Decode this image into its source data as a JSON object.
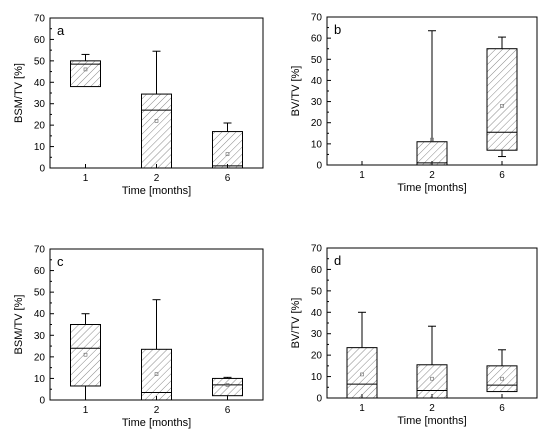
{
  "chart_data": [
    {
      "type": "box",
      "panel_label": "a",
      "xlabel": "Time [months]",
      "ylabel": "BSM/TV [%]",
      "ylim": [
        0,
        70
      ],
      "yticks": [
        0,
        10,
        20,
        30,
        40,
        50,
        60,
        70
      ],
      "categories": [
        "1",
        "2",
        "6"
      ],
      "boxes": [
        {
          "category": "1",
          "q1": 38,
          "median": 48.5,
          "q3": 50,
          "whisker_low": 38,
          "whisker_high": 53,
          "mean": 46
        },
        {
          "category": "2",
          "q1": 0,
          "median": 27,
          "q3": 34.5,
          "whisker_low": 0,
          "whisker_high": 54.5,
          "mean": 22
        },
        {
          "category": "6",
          "q1": 0,
          "median": 1,
          "q3": 17,
          "whisker_low": 0,
          "whisker_high": 21,
          "mean": 6.5
        }
      ]
    },
    {
      "type": "box",
      "panel_label": "b",
      "xlabel": "Time [months]",
      "ylabel": "BV/TV [%]",
      "ylim": [
        0,
        70
      ],
      "yticks": [
        0,
        10,
        20,
        30,
        40,
        50,
        60,
        70
      ],
      "categories": [
        "1",
        "2",
        "6"
      ],
      "boxes": [
        {
          "category": "1",
          "q1": 0,
          "median": 0,
          "q3": 0,
          "whisker_low": 0,
          "whisker_high": 0,
          "mean": null
        },
        {
          "category": "2",
          "q1": 0,
          "median": 1,
          "q3": 11,
          "whisker_low": 0,
          "whisker_high": 63.5,
          "mean": 12
        },
        {
          "category": "6",
          "q1": 7,
          "median": 15.5,
          "q3": 55,
          "whisker_low": 4,
          "whisker_high": 60.5,
          "mean": 28
        }
      ]
    },
    {
      "type": "box",
      "panel_label": "c",
      "xlabel": "Time [months]",
      "ylabel": "BSM/TV [%]",
      "ylim": [
        0,
        70
      ],
      "yticks": [
        0,
        10,
        20,
        30,
        40,
        50,
        60,
        70
      ],
      "categories": [
        "1",
        "2",
        "6"
      ],
      "boxes": [
        {
          "category": "1",
          "q1": 6.5,
          "median": 24,
          "q3": 35,
          "whisker_low": 0,
          "whisker_high": 40,
          "mean": 21
        },
        {
          "category": "2",
          "q1": 0,
          "median": 3.5,
          "q3": 23.5,
          "whisker_low": 0,
          "whisker_high": 46.5,
          "mean": 12
        },
        {
          "category": "6",
          "q1": 2,
          "median": 7,
          "q3": 10,
          "whisker_low": 2,
          "whisker_high": 10.5,
          "mean": 7
        }
      ]
    },
    {
      "type": "box",
      "panel_label": "d",
      "xlabel": "Time [months]",
      "ylabel": "BV/TV [%]",
      "ylim": [
        0,
        70
      ],
      "yticks": [
        0,
        10,
        20,
        30,
        40,
        50,
        60,
        70
      ],
      "categories": [
        "1",
        "2",
        "6"
      ],
      "boxes": [
        {
          "category": "1",
          "q1": 0,
          "median": 6.5,
          "q3": 23.5,
          "whisker_low": 0,
          "whisker_high": 40,
          "mean": 11
        },
        {
          "category": "2",
          "q1": 0,
          "median": 3.5,
          "q3": 15.5,
          "whisker_low": 0,
          "whisker_high": 33.5,
          "mean": 9
        },
        {
          "category": "6",
          "q1": 3,
          "median": 6,
          "q3": 15,
          "whisker_low": 3,
          "whisker_high": 22.5,
          "mean": 9
        }
      ]
    }
  ]
}
